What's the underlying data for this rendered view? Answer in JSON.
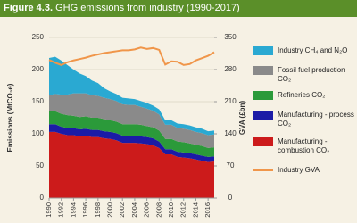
{
  "chart_data": {
    "type": "stacked_area_line",
    "figure_label": "Figure 4.3.",
    "title": "GHG emissions from industry (1990-2017)",
    "y_label": "Emissions (MtCO₂e)",
    "y2_label": "GVA (£bn)",
    "x": [
      1990,
      1991,
      1992,
      1993,
      1994,
      1995,
      1996,
      1997,
      1998,
      1999,
      2000,
      2001,
      2002,
      2003,
      2004,
      2005,
      2006,
      2007,
      2008,
      2009,
      2010,
      2011,
      2012,
      2013,
      2014,
      2015,
      2016,
      2017
    ],
    "xlim": [
      1990,
      2017
    ],
    "xticks": [
      1990,
      1992,
      1994,
      1996,
      1998,
      2000,
      2002,
      2004,
      2006,
      2008,
      2010,
      2012,
      2014,
      2016
    ],
    "ylim": [
      0,
      250
    ],
    "yticks": [
      0,
      50,
      100,
      150,
      200,
      250
    ],
    "y2lim": [
      0,
      350
    ],
    "y2ticks": [
      0,
      70,
      140,
      210,
      280,
      350
    ],
    "grid": true,
    "series": [
      {
        "name": "Industry CH₄ and N₂O",
        "color": "#2aa9d2",
        "values": [
          58,
          58,
          53,
          46,
          37,
          31,
          27,
          23,
          20,
          15,
          12,
          11,
          10,
          10,
          9,
          9,
          9,
          8,
          8,
          7,
          7,
          7,
          7,
          7,
          7,
          7,
          6,
          6
        ]
      },
      {
        "name": "Fossil fuel production CO₂",
        "color": "#8a8a8a",
        "values": [
          25,
          27,
          30,
          32,
          35,
          37,
          36,
          35,
          34,
          33,
          33,
          32,
          31,
          30,
          30,
          28,
          27,
          26,
          25,
          22,
          22,
          21,
          21,
          21,
          20,
          20,
          20,
          20
        ]
      },
      {
        "name": "Refineries CO₂",
        "color": "#2b9a3a",
        "values": [
          20,
          20,
          20,
          20,
          19,
          19,
          19,
          19,
          19,
          19,
          18,
          18,
          18,
          18,
          18,
          18,
          17,
          17,
          17,
          16,
          16,
          16,
          16,
          15,
          15,
          15,
          14,
          14
        ]
      },
      {
        "name": "Manufacturing - process CO₂",
        "color": "#1b1ba6",
        "values": [
          12,
          12,
          11,
          11,
          11,
          11,
          11,
          11,
          11,
          11,
          11,
          11,
          11,
          11,
          11,
          11,
          11,
          11,
          10,
          8,
          8,
          8,
          8,
          8,
          8,
          8,
          8,
          8
        ]
      },
      {
        "name": "Manufacturing - combustion CO₂",
        "color": "#cc1b1b",
        "values": [
          103,
          103,
          100,
          98,
          98,
          96,
          97,
          95,
          95,
          93,
          92,
          90,
          86,
          86,
          86,
          85,
          84,
          82,
          78,
          68,
          68,
          64,
          63,
          62,
          60,
          58,
          56,
          57
        ]
      },
      {
        "name": "Industry GVA",
        "color": "#f0964a",
        "axis": "y2",
        "values": [
          301,
          295,
          290,
          296,
          300,
          303,
          306,
          310,
          313,
          316,
          318,
          320,
          322,
          322,
          324,
          328,
          325,
          327,
          323,
          291,
          298,
          297,
          290,
          292,
          300,
          305,
          310,
          318
        ]
      }
    ]
  }
}
